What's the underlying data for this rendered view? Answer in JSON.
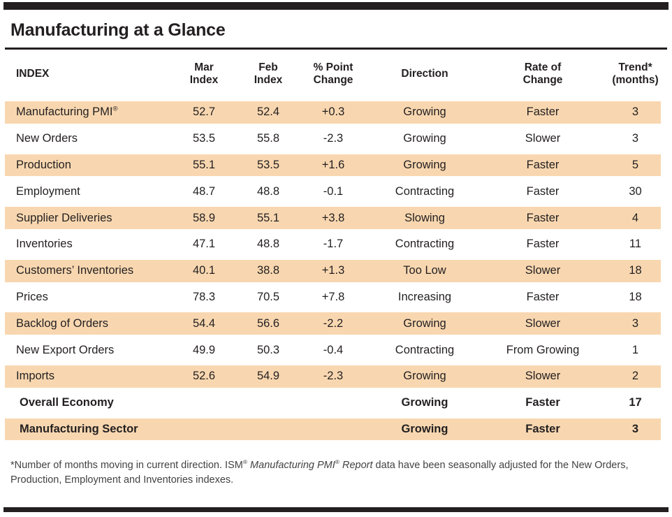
{
  "title": "Manufacturing at a Glance",
  "colors": {
    "bar_black": "#231f20",
    "row_shade": "#f8d7b0",
    "text": "#231f20",
    "footnote_text": "#424242"
  },
  "table": {
    "headers": {
      "index": "INDEX",
      "mar": {
        "l1": "Mar",
        "l2": "Index"
      },
      "feb": {
        "l1": "Feb",
        "l2": "Index"
      },
      "change": {
        "l1": "% Point",
        "l2": "Change"
      },
      "direction": "Direction",
      "rate": {
        "l1": "Rate of",
        "l2": "Change"
      },
      "trend": {
        "l1": "Trend*",
        "l2": "(months)"
      }
    },
    "rows": [
      {
        "name": "Manufacturing PMI",
        "name_sup": "®",
        "mar": "52.7",
        "feb": "52.4",
        "change": "+0.3",
        "direction": "Growing",
        "rate": "Faster",
        "trend": "3"
      },
      {
        "name": "New Orders",
        "mar": "53.5",
        "feb": "55.8",
        "change": "-2.3",
        "direction": "Growing",
        "rate": "Slower",
        "trend": "3"
      },
      {
        "name": "Production",
        "mar": "55.1",
        "feb": "53.5",
        "change": "+1.6",
        "direction": "Growing",
        "rate": "Faster",
        "trend": "5"
      },
      {
        "name": "Employment",
        "mar": "48.7",
        "feb": "48.8",
        "change": "-0.1",
        "direction": "Contracting",
        "rate": "Faster",
        "trend": "30"
      },
      {
        "name": "Supplier Deliveries",
        "mar": "58.9",
        "feb": "55.1",
        "change": "+3.8",
        "direction": "Slowing",
        "rate": "Faster",
        "trend": "4"
      },
      {
        "name": "Inventories",
        "mar": "47.1",
        "feb": "48.8",
        "change": "-1.7",
        "direction": "Contracting",
        "rate": "Faster",
        "trend": "11"
      },
      {
        "name": "Customers’ Inventories",
        "mar": "40.1",
        "feb": "38.8",
        "change": "+1.3",
        "direction": "Too Low",
        "rate": "Slower",
        "trend": "18"
      },
      {
        "name": "Prices",
        "mar": "78.3",
        "feb": "70.5",
        "change": "+7.8",
        "direction": "Increasing",
        "rate": "Faster",
        "trend": "18"
      },
      {
        "name": "Backlog of Orders",
        "mar": "54.4",
        "feb": "56.6",
        "change": "-2.2",
        "direction": "Growing",
        "rate": "Slower",
        "trend": "3"
      },
      {
        "name": "New Export Orders",
        "mar": "49.9",
        "feb": "50.3",
        "change": "-0.4",
        "direction": "Contracting",
        "rate": "From Growing",
        "trend": "1"
      },
      {
        "name": "Imports",
        "mar": "52.6",
        "feb": "54.9",
        "change": "-2.3",
        "direction": "Growing",
        "rate": "Slower",
        "trend": "2"
      }
    ],
    "summary_rows": [
      {
        "name": "Overall Economy",
        "direction": "Growing",
        "rate": "Faster",
        "trend": "17"
      },
      {
        "name": "Manufacturing Sector",
        "direction": "Growing",
        "rate": "Faster",
        "trend": "3"
      }
    ]
  },
  "footnote": {
    "line1_lead": "*Number of months moving in current direction. ISM",
    "line1_sup1": "®",
    "line1_italic1": " Manufacturing PMI",
    "line1_sup2": "®",
    "line1_italic2": " Report",
    "line1_rest": " data have been seasonally adjusted for the New Orders,",
    "line2": "Production, Employment and Inventories indexes."
  }
}
